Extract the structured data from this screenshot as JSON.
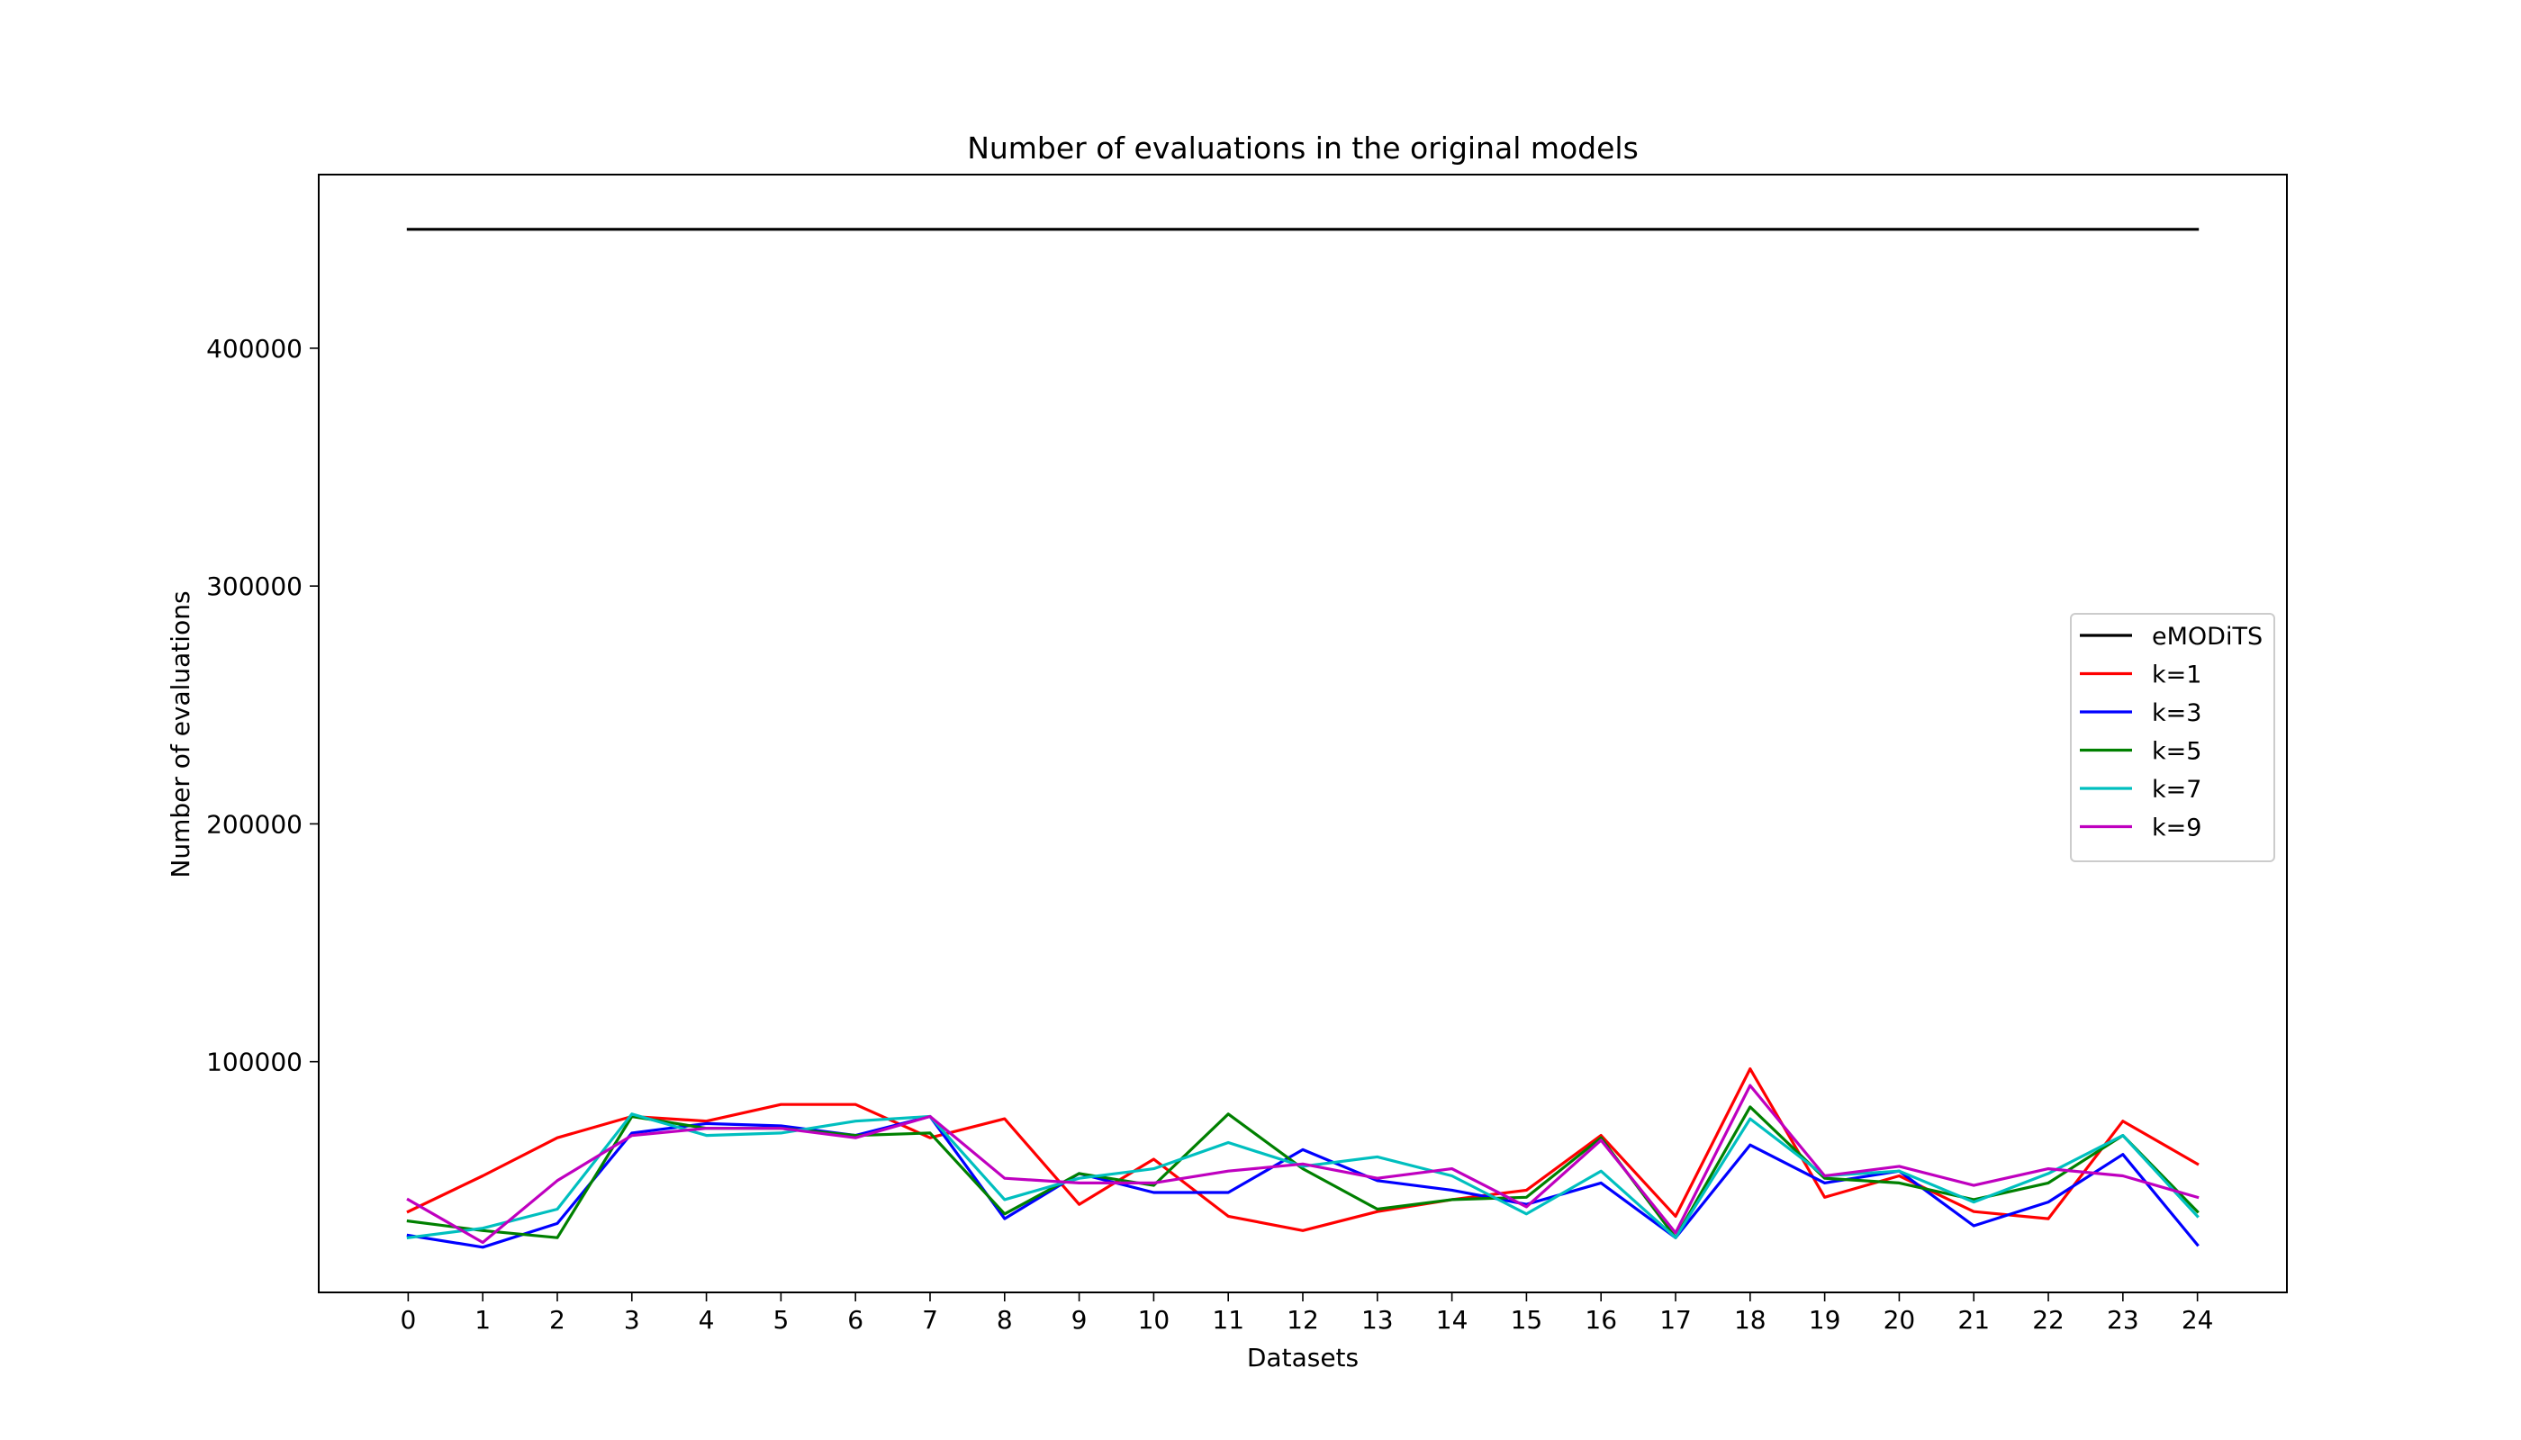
{
  "chart_data": {
    "type": "line",
    "title": "Number of evaluations in the original models",
    "xlabel": "Datasets",
    "ylabel": "Number of evaluations",
    "xlim": [
      -1.2,
      25.2
    ],
    "ylim": [
      3000,
      473000
    ],
    "x": [
      0,
      1,
      2,
      3,
      4,
      5,
      6,
      7,
      8,
      9,
      10,
      11,
      12,
      13,
      14,
      15,
      16,
      17,
      18,
      19,
      20,
      21,
      22,
      23,
      24
    ],
    "x_tick_labels": [
      "0",
      "1",
      "2",
      "3",
      "4",
      "5",
      "6",
      "7",
      "8",
      "9",
      "10",
      "11",
      "12",
      "13",
      "14",
      "15",
      "16",
      "17",
      "18",
      "19",
      "20",
      "21",
      "22",
      "23",
      "24"
    ],
    "y_ticks": [
      100000,
      200000,
      300000,
      400000
    ],
    "y_tick_labels": [
      "100000",
      "200000",
      "300000",
      "400000"
    ],
    "grid": false,
    "legend_position": "center-right",
    "series": [
      {
        "name": "eMODiTS",
        "color": "#000000",
        "values": [
          450000,
          450000,
          450000,
          450000,
          450000,
          450000,
          450000,
          450000,
          450000,
          450000,
          450000,
          450000,
          450000,
          450000,
          450000,
          450000,
          450000,
          450000,
          450000,
          450000,
          450000,
          450000,
          450000,
          450000,
          450000
        ]
      },
      {
        "name": "k=1",
        "color": "#ff0000",
        "values": [
          37000,
          52000,
          68000,
          77000,
          75000,
          82000,
          82000,
          68000,
          76000,
          40000,
          59000,
          35000,
          29000,
          37000,
          42000,
          46000,
          69000,
          35000,
          97000,
          43000,
          52000,
          37000,
          34000,
          75000,
          57000
        ]
      },
      {
        "name": "k=3",
        "color": "#0000ff",
        "values": [
          27000,
          22000,
          32000,
          70000,
          74000,
          73000,
          69000,
          77000,
          34000,
          53000,
          45000,
          45000,
          63000,
          50000,
          46000,
          40000,
          49000,
          26000,
          65000,
          49000,
          54000,
          31000,
          41000,
          61000,
          23000
        ]
      },
      {
        "name": "k=5",
        "color": "#008000",
        "values": [
          33000,
          29000,
          26000,
          77000,
          72000,
          72000,
          69000,
          70000,
          36000,
          53000,
          48000,
          78000,
          55000,
          38000,
          42000,
          43000,
          68000,
          26000,
          81000,
          51000,
          49000,
          42000,
          49000,
          69000,
          37000
        ]
      },
      {
        "name": "k=7",
        "color": "#00bfbf",
        "values": [
          26000,
          30000,
          38000,
          78000,
          69000,
          70000,
          75000,
          77000,
          42000,
          51000,
          55000,
          66000,
          56000,
          60000,
          52000,
          36000,
          54000,
          26000,
          76000,
          52000,
          54000,
          41000,
          53000,
          69000,
          35000
        ]
      },
      {
        "name": "k=9",
        "color": "#bf00bf",
        "values": [
          42000,
          24000,
          50000,
          69000,
          72000,
          72000,
          68000,
          77000,
          51000,
          49000,
          49000,
          54000,
          57000,
          51000,
          55000,
          39000,
          67000,
          28000,
          90000,
          52000,
          56000,
          48000,
          55000,
          52000,
          43000
        ]
      }
    ]
  }
}
